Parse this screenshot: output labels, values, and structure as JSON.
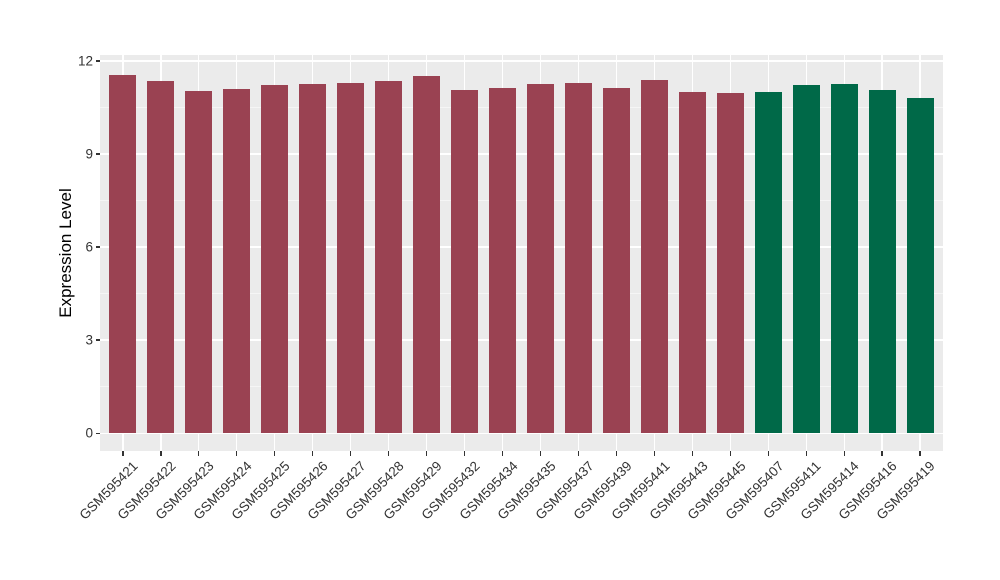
{
  "chart_data": {
    "type": "bar",
    "title": "",
    "xlabel": "",
    "ylabel": "Expression Level",
    "ylim": [
      0,
      12
    ],
    "yticks": [
      0,
      3,
      6,
      9,
      12
    ],
    "yticks_minor": [
      1.5,
      4.5,
      7.5,
      10.5
    ],
    "grid": "on",
    "legend_position": "none",
    "categories": [
      "GSM595421",
      "GSM595422",
      "GSM595423",
      "GSM595424",
      "GSM595425",
      "GSM595426",
      "GSM595427",
      "GSM595428",
      "GSM595429",
      "GSM595432",
      "GSM595434",
      "GSM595435",
      "GSM595437",
      "GSM595439",
      "GSM595441",
      "GSM595443",
      "GSM595445",
      "GSM595407",
      "GSM595411",
      "GSM595414",
      "GSM595416",
      "GSM595419"
    ],
    "values": [
      11.54,
      11.34,
      11.04,
      11.11,
      11.23,
      11.26,
      11.29,
      11.36,
      11.52,
      11.06,
      11.14,
      11.25,
      11.3,
      11.14,
      11.37,
      11.0,
      10.98,
      10.99,
      11.23,
      11.24,
      11.06,
      10.82
    ],
    "groups": [
      "red",
      "red",
      "red",
      "red",
      "red",
      "red",
      "red",
      "red",
      "red",
      "red",
      "red",
      "red",
      "red",
      "red",
      "red",
      "red",
      "red",
      "green",
      "green",
      "green",
      "green",
      "green"
    ],
    "palette": {
      "red": "#9A4252",
      "green": "#006948"
    },
    "panel_background": "#EBEBEB",
    "gridline_major_color": "#FFFFFF",
    "gridline_minor_color": "#F5F5F5",
    "axis_text_color": "#333333"
  }
}
